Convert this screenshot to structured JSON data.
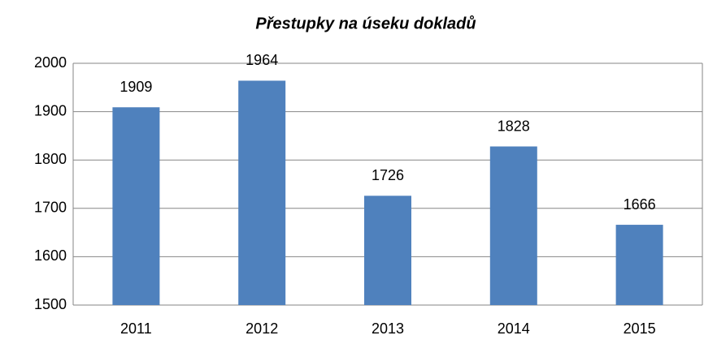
{
  "chart_data": {
    "type": "bar",
    "title": "Přestupky na úseku dokladů",
    "categories": [
      "2011",
      "2012",
      "2013",
      "2014",
      "2015"
    ],
    "values": [
      1909,
      1964,
      1726,
      1828,
      1666
    ],
    "color": "#4f81bd",
    "ylim": [
      1500,
      2000
    ],
    "yticks": [
      1500,
      1600,
      1700,
      1800,
      1900,
      2000
    ],
    "grid": true
  }
}
